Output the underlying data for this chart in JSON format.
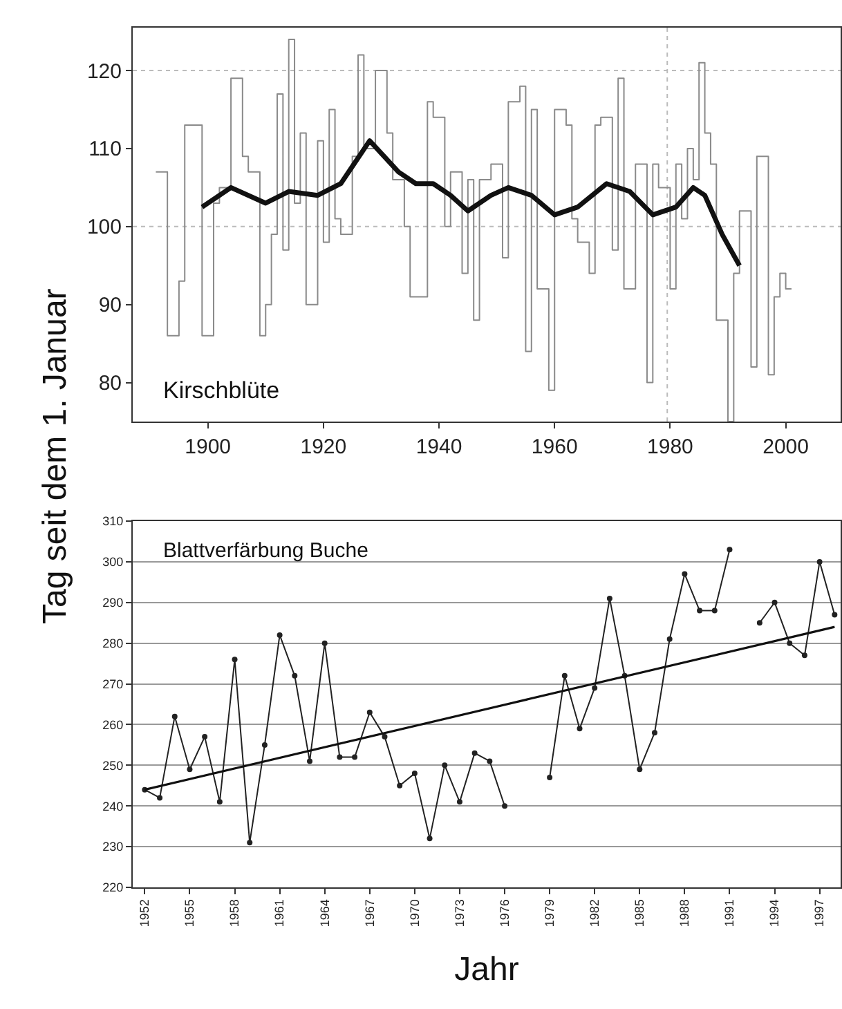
{
  "chart_data": [
    {
      "type": "step",
      "title": "Kirschblüte",
      "ylabel": "Tag seit dem 1. Januar",
      "xlim": [
        1887,
        2009.5
      ],
      "xticks": [
        1900,
        1920,
        1940,
        1960,
        1980,
        2000
      ],
      "ylim": [
        75,
        125.5
      ],
      "yticks": [
        80,
        90,
        100,
        110,
        120
      ],
      "grid": false,
      "ref_lines": [
        {
          "axis": "y",
          "value": 100,
          "label": null,
          "color": "#bbbbbb",
          "line_style": "dotted"
        },
        {
          "axis": "y",
          "value": 120,
          "label": null,
          "color": "#bbbbbb",
          "line_style": "dotted"
        },
        {
          "axis": "x",
          "value": 1979.5,
          "label": null,
          "color": "#bbbbbb",
          "line_style": "dotted"
        }
      ],
      "series": [
        {
          "color": "#8a8a8a",
          "marker": "none",
          "x": [
            1891,
            1893,
            1895,
            1896,
            1899,
            1901,
            1902,
            1904,
            1906,
            1907,
            1909,
            1910,
            1911,
            1912,
            1913,
            1914,
            1915,
            1916,
            1917,
            1919,
            1920,
            1921,
            1922,
            1923,
            1925,
            1926,
            1927,
            1929,
            1931,
            1932,
            1934,
            1935,
            1938,
            1939,
            1941,
            1942,
            1944,
            1945,
            1946,
            1947,
            1949,
            1951,
            1952,
            1954,
            1955,
            1956,
            1957,
            1959,
            1960,
            1962,
            1963,
            1964,
            1966,
            1967,
            1968,
            1970,
            1971,
            1972,
            1974,
            1976,
            1977,
            1978,
            1980,
            1981,
            1982,
            1983,
            1984,
            1985,
            1986,
            1987,
            1988,
            1990,
            1991,
            1992,
            1994,
            1995,
            1997,
            1998,
            1999,
            2000,
            2001
          ],
          "values": [
            107,
            86,
            93,
            113,
            86,
            103,
            105,
            119,
            109,
            107,
            86,
            90,
            99,
            117,
            97,
            124,
            103,
            112,
            90,
            111,
            98,
            115,
            101,
            99,
            109,
            122,
            110,
            120,
            112,
            106,
            100,
            91,
            116,
            114,
            100,
            107,
            94,
            106,
            88,
            106,
            108,
            96,
            116,
            118,
            84,
            115,
            92,
            79,
            115,
            113,
            101,
            98,
            94,
            113,
            114,
            97,
            119,
            92,
            108,
            80,
            108,
            105,
            92,
            108,
            101,
            110,
            106,
            121,
            112,
            108,
            88,
            75,
            94,
            102,
            82,
            109,
            81,
            91,
            94,
            92,
            92
          ]
        },
        {
          "type": "line",
          "color": "#111111",
          "marker": "none",
          "x": [
            1899,
            1904,
            1910,
            1914,
            1919,
            1923,
            1928,
            1933,
            1936,
            1939,
            1942,
            1945,
            1949,
            1952,
            1956,
            1960,
            1964,
            1969,
            1973,
            1977,
            1981,
            1984,
            1986,
            1989,
            1992
          ],
          "values": [
            102.5,
            105,
            103,
            104.5,
            104,
            105.5,
            111,
            107,
            105.5,
            105.5,
            104,
            102,
            104,
            105,
            104,
            101.5,
            102.5,
            105.5,
            104.5,
            101.5,
            102.5,
            105,
            104,
            99,
            95
          ]
        }
      ]
    },
    {
      "type": "line",
      "title": "Blattverfärbung Buche",
      "xlabel": "Jahr",
      "xlim": [
        1951.2,
        1998.4
      ],
      "xticks": [
        1952,
        1955,
        1958,
        1961,
        1964,
        1967,
        1970,
        1973,
        1976,
        1979,
        1982,
        1985,
        1988,
        1991,
        1994,
        1997
      ],
      "ylim": [
        220,
        310
      ],
      "yticks": [
        220,
        230,
        240,
        250,
        260,
        270,
        280,
        290,
        300,
        310
      ],
      "grid": "y",
      "series": [
        {
          "color": "#222222",
          "marker": "circle",
          "x": [
            1952,
            1953,
            1954,
            1955,
            1956,
            1957,
            1958,
            1959,
            1960,
            1961,
            1962,
            1963,
            1964,
            1965,
            1966,
            1967,
            1968,
            1969,
            1970,
            1971,
            1972,
            1973,
            1974,
            1975,
            1976,
            1977,
            1978,
            1979,
            1980,
            1981,
            1982,
            1983,
            1984,
            1985,
            1986,
            1987,
            1988,
            1989,
            1990,
            1991,
            1992,
            1993,
            1994,
            1995,
            1996,
            1997,
            1998
          ],
          "values": [
            244,
            242,
            262,
            249,
            257,
            241,
            276,
            231,
            255,
            282,
            272,
            251,
            280,
            252,
            252,
            263,
            257,
            245,
            248,
            232,
            250,
            241,
            253,
            251,
            240,
            null,
            null,
            247,
            272,
            259,
            269,
            291,
            272,
            249,
            258,
            281,
            297,
            288,
            288,
            303,
            null,
            285,
            290,
            280,
            277,
            300,
            287
          ]
        },
        {
          "color": "#111111",
          "marker": "none",
          "x": [
            1952,
            1998
          ],
          "values": [
            244,
            284
          ]
        }
      ]
    }
  ]
}
